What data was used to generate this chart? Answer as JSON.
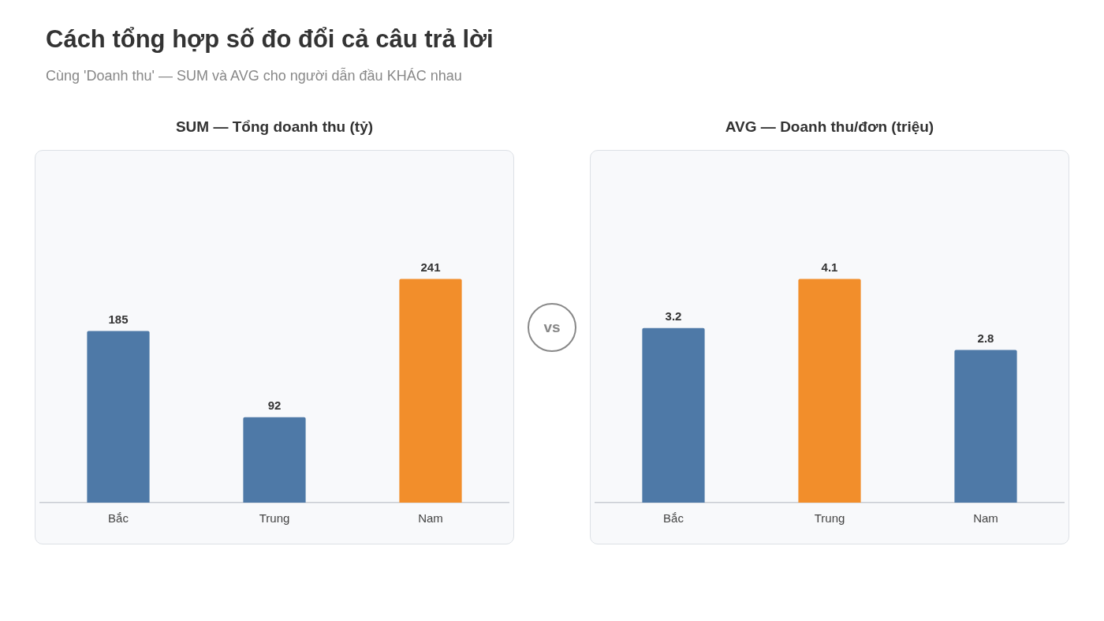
{
  "chart_data": [
    {
      "type": "bar",
      "title": "SUM — Tổng doanh thu (tỷ)",
      "categories": [
        "Bắc",
        "Trung",
        "Nam"
      ],
      "values": [
        185,
        92,
        241
      ],
      "colors": [
        "#4e79a7",
        "#4e79a7",
        "#f28e2b"
      ],
      "data_labels": true,
      "grid": false,
      "legend": false,
      "tick_labels": "x",
      "annotations": [
        "Cách tổng hợp số đo đổi cả câu trả lời",
        "Cùng 'Doanh thu' — SUM và AVG cho người dẫn đầu KHÁC nhau",
        "vs"
      ]
    },
    {
      "type": "bar",
      "title": "AVG — Doanh thu/đơn (triệu)",
      "categories": [
        "Bắc",
        "Trung",
        "Nam"
      ],
      "values": [
        3.2,
        4.1,
        2.8
      ],
      "colors": [
        "#4e79a7",
        "#f28e2b",
        "#4e79a7"
      ],
      "data_labels": true,
      "grid": false,
      "legend": false,
      "tick_labels": "x"
    }
  ]
}
